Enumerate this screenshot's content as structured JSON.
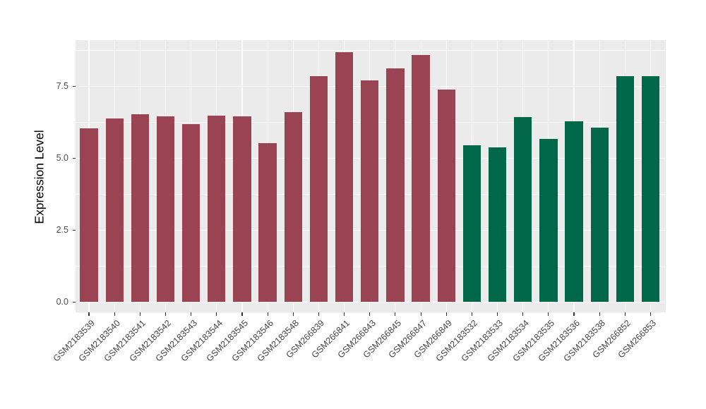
{
  "chart_data": {
    "type": "bar",
    "title": "",
    "xlabel": "",
    "ylabel": "Expression Level",
    "categories": [
      "GSM2183539",
      "GSM2183540",
      "GSM2183541",
      "GSM2183542",
      "GSM2183543",
      "GSM2183544",
      "GSM2183545",
      "GSM2183546",
      "GSM2183548",
      "GSM266839",
      "GSM266841",
      "GSM266843",
      "GSM266845",
      "GSM266847",
      "GSM266849",
      "GSM2183532",
      "GSM2183533",
      "GSM2183534",
      "GSM2183535",
      "GSM2183536",
      "GSM2183538",
      "GSM266852",
      "GSM266853"
    ],
    "values": [
      6.03,
      6.37,
      6.53,
      6.46,
      6.18,
      6.47,
      6.45,
      5.51,
      6.6,
      7.84,
      8.68,
      7.7,
      8.13,
      8.59,
      7.38,
      5.45,
      5.38,
      6.42,
      5.67,
      6.27,
      6.07,
      7.85,
      7.85
    ],
    "bar_groups": [
      "group1",
      "group1",
      "group1",
      "group1",
      "group1",
      "group1",
      "group1",
      "group1",
      "group1",
      "group1",
      "group1",
      "group1",
      "group1",
      "group1",
      "group1",
      "group2",
      "group2",
      "group2",
      "group2",
      "group2",
      "group2",
      "group2",
      "group2"
    ],
    "y_ticks": [
      0.0,
      2.5,
      5.0,
      7.5
    ],
    "y_tick_labels": [
      "0.0",
      "2.5",
      "5.0",
      "7.5"
    ],
    "y_minor_ticks": [
      1.25,
      3.75,
      6.25,
      8.75
    ],
    "ylim": [
      -0.36,
      9.1
    ],
    "grid": "on",
    "legend_position": "none"
  },
  "colors": {
    "group1": "#9A4352",
    "group2": "#006849",
    "panel_bg": "#EBEBEB",
    "gridline": "#FFFFFF",
    "tick_mark": "#333333",
    "axis_text": "#4d4d4d",
    "axis_title": "#000000"
  }
}
